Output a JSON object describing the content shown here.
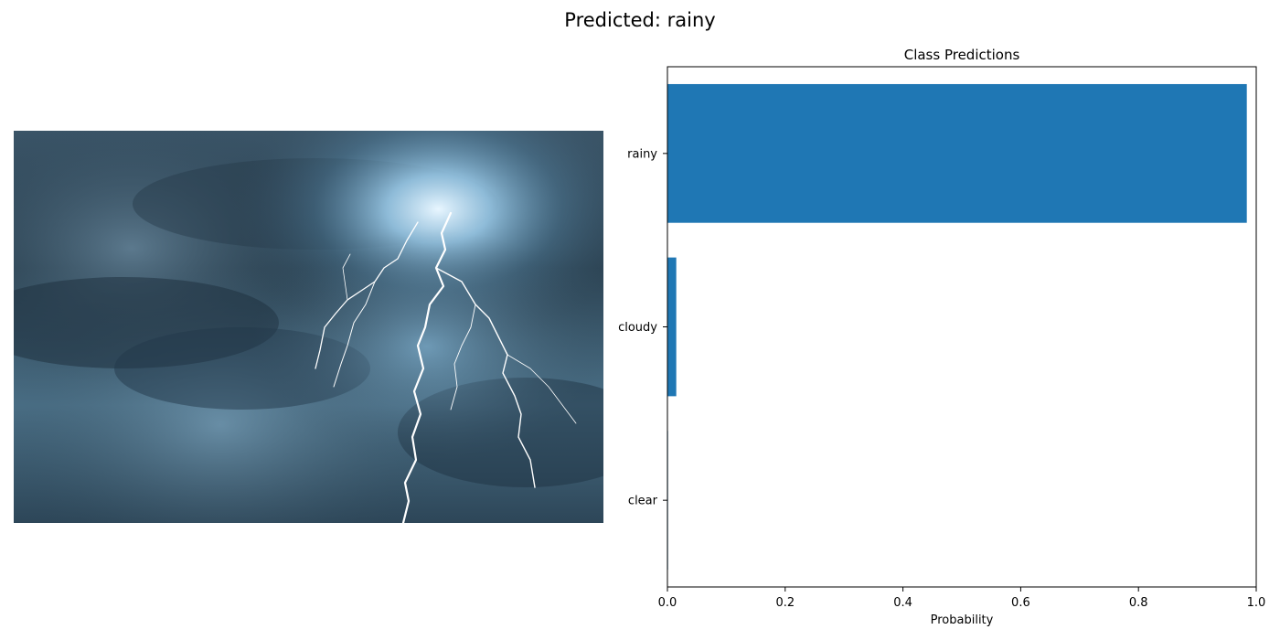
{
  "figure": {
    "suptitle": "Predicted: rainy"
  },
  "photo": {
    "subject": "storm clouds with lightning"
  },
  "chart_data": {
    "type": "bar",
    "orientation": "horizontal",
    "title": "Class Predictions",
    "xlabel": "Probability",
    "ylabel": "",
    "xlim": [
      0,
      1.0
    ],
    "xticks": [
      "0.0",
      "0.2",
      "0.4",
      "0.6",
      "0.8",
      "1.0"
    ],
    "categories": [
      "rainy",
      "cloudy",
      "clear"
    ],
    "values": [
      0.984,
      0.015,
      0.001
    ],
    "bar_color": "#1f77b4",
    "grid": false
  }
}
